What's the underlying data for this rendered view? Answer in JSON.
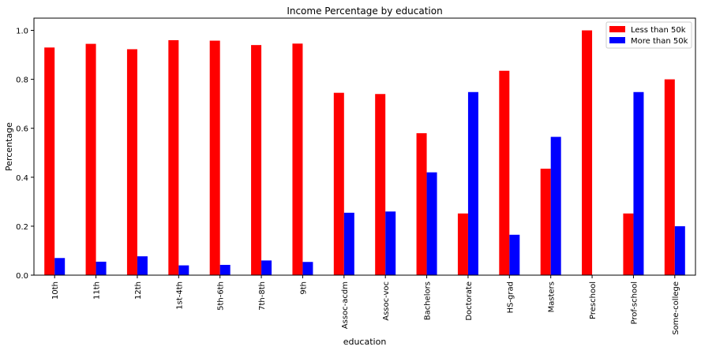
{
  "chart_data": {
    "type": "bar",
    "title": "Income Percentage by education",
    "xlabel": "education",
    "ylabel": "Percentage",
    "ylim": [
      0,
      1.05
    ],
    "yticks": [
      0.0,
      0.2,
      0.4,
      0.6,
      0.8,
      1.0
    ],
    "ytick_labels": [
      "0.0",
      "0.2",
      "0.4",
      "0.6",
      "0.8",
      "1.0"
    ],
    "grid": false,
    "legend_position": "top-right",
    "categories": [
      "10th",
      "11th",
      "12th",
      "1st-4th",
      "5th-6th",
      "7th-8th",
      "9th",
      "Assoc-acdm",
      "Assoc-voc",
      "Bachelors",
      "Doctorate",
      "HS-grad",
      "Masters",
      "Preschool",
      "Prof-school",
      "Some-college"
    ],
    "series": [
      {
        "name": "Less than 50k",
        "color": "#ff0000",
        "values": [
          0.93,
          0.945,
          0.923,
          0.96,
          0.958,
          0.94,
          0.946,
          0.745,
          0.74,
          0.58,
          0.252,
          0.835,
          0.435,
          1.0,
          0.252,
          0.8
        ]
      },
      {
        "name": "More than 50k",
        "color": "#0000ff",
        "values": [
          0.07,
          0.055,
          0.077,
          0.04,
          0.042,
          0.06,
          0.054,
          0.255,
          0.26,
          0.42,
          0.748,
          0.165,
          0.565,
          0.0,
          0.748,
          0.2
        ]
      }
    ]
  }
}
